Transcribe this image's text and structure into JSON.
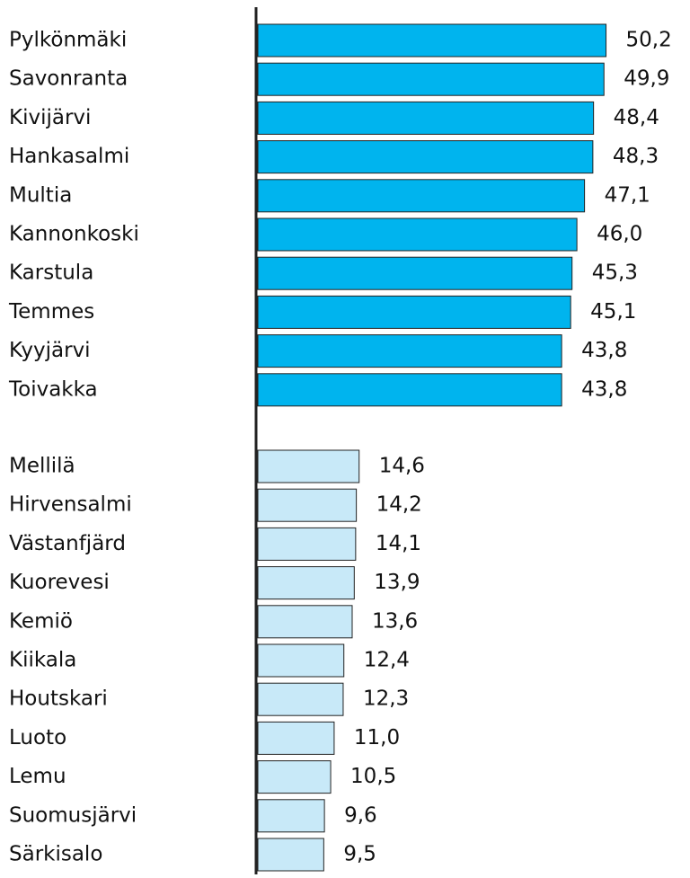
{
  "chart_data": [
    {
      "type": "bar",
      "orientation": "horizontal",
      "categories": [
        "Pylkönmäki",
        "Savonranta",
        "Kivijärvi",
        "Hankasalmi",
        "Multia",
        "Kannonkoski",
        "Karstula",
        "Temmes",
        "Kyyjärvi",
        "Toivakka"
      ],
      "values": [
        50.2,
        49.9,
        48.4,
        48.3,
        47.1,
        46.0,
        45.3,
        45.1,
        43.8,
        43.8
      ],
      "value_labels": [
        "50,2",
        "49,9",
        "48,4",
        "48,3",
        "47,1",
        "46,0",
        "45,3",
        "45,1",
        "43,8",
        "43,8"
      ],
      "color": "#00b4ee",
      "xlim": [
        0,
        50
      ]
    },
    {
      "type": "bar",
      "orientation": "horizontal",
      "categories": [
        "Mellilä",
        "Hirvensalmi",
        "Västanfjärd",
        "Kuorevesi",
        "Kemiö",
        "Kiikala",
        "Houtskari",
        "Luoto",
        "Lemu",
        "Suomusjärvi",
        "Särkisalo"
      ],
      "values": [
        14.6,
        14.2,
        14.1,
        13.9,
        13.6,
        12.4,
        12.3,
        11.0,
        10.5,
        9.6,
        9.5
      ],
      "value_labels": [
        "14,6",
        "14,2",
        "14,1",
        "13,9",
        "13,6",
        "12,4",
        "12,3",
        "11,0",
        "10,5",
        "9,6",
        "9,5"
      ],
      "color": "#c8e9f8",
      "xlim": [
        0,
        50
      ]
    }
  ]
}
